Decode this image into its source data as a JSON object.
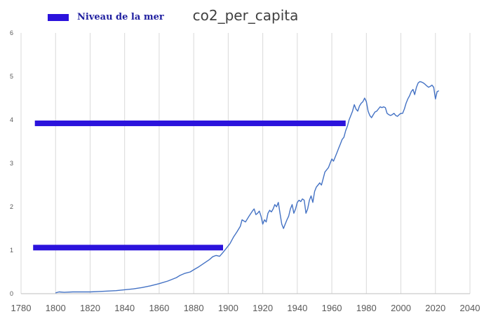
{
  "chart_data": {
    "type": "line",
    "title": "co2_per_capita",
    "xlabel": "",
    "ylabel": "",
    "xlim": [
      1780,
      2040
    ],
    "ylim": [
      0,
      6
    ],
    "xticks": [
      1780,
      1800,
      1820,
      1840,
      1860,
      1880,
      1900,
      1920,
      1940,
      1960,
      1980,
      2000,
      2020,
      2040
    ],
    "yticks": [
      0,
      1,
      2,
      3,
      4,
      5,
      6
    ],
    "grid": "vertical",
    "legend": {
      "position": "top-left",
      "entries": [
        "Niveau de la mer"
      ]
    },
    "colors": {
      "line": "#4472c4",
      "bars": "#2b13dc",
      "grid": "#d9d9d9",
      "axis_text": "#595959"
    },
    "series": [
      {
        "x": [
          1800,
          1802,
          1805,
          1810,
          1815,
          1820,
          1825,
          1830,
          1835,
          1840,
          1845,
          1850,
          1855,
          1860,
          1865,
          1870,
          1872,
          1875,
          1878,
          1880,
          1883,
          1886,
          1889,
          1891,
          1893,
          1895,
          1897,
          1899,
          1901,
          1903,
          1905,
          1907,
          1908,
          1910,
          1912,
          1914,
          1915,
          1916,
          1917,
          1918,
          1919,
          1920,
          1921,
          1922,
          1923,
          1924,
          1925,
          1926,
          1927,
          1928,
          1929,
          1930,
          1931,
          1932,
          1933,
          1934,
          1935,
          1936,
          1937,
          1938,
          1939,
          1940,
          1941,
          1942,
          1943,
          1944,
          1945,
          1946,
          1947,
          1948,
          1949,
          1950,
          1951,
          1952,
          1953,
          1954,
          1955,
          1956,
          1957,
          1958,
          1959,
          1960,
          1961,
          1962,
          1963,
          1964,
          1965,
          1966,
          1967,
          1968,
          1969,
          1970,
          1971,
          1972,
          1973,
          1974,
          1975,
          1976,
          1977,
          1978,
          1979,
          1980,
          1981,
          1982,
          1983,
          1984,
          1985,
          1986,
          1987,
          1988,
          1989,
          1990,
          1991,
          1992,
          1993,
          1994,
          1995,
          1996,
          1997,
          1998,
          1999,
          2000,
          2001,
          2002,
          2003,
          2004,
          2005,
          2006,
          2007,
          2008,
          2009,
          2010,
          2011,
          2012,
          2013,
          2014,
          2015,
          2016,
          2017,
          2018,
          2019,
          2020,
          2021,
          2022
        ],
        "values": [
          0.02,
          0.04,
          0.03,
          0.04,
          0.04,
          0.04,
          0.05,
          0.06,
          0.07,
          0.09,
          0.11,
          0.14,
          0.18,
          0.23,
          0.29,
          0.37,
          0.42,
          0.47,
          0.5,
          0.55,
          0.62,
          0.7,
          0.78,
          0.85,
          0.88,
          0.86,
          0.95,
          1.05,
          1.15,
          1.3,
          1.42,
          1.55,
          1.7,
          1.65,
          1.78,
          1.9,
          1.95,
          1.82,
          1.85,
          1.9,
          1.78,
          1.6,
          1.7,
          1.65,
          1.85,
          1.92,
          1.88,
          1.95,
          2.05,
          2.0,
          2.1,
          1.85,
          1.6,
          1.5,
          1.6,
          1.7,
          1.78,
          1.95,
          2.05,
          1.85,
          1.95,
          2.1,
          2.15,
          2.12,
          2.18,
          2.15,
          1.85,
          1.95,
          2.15,
          2.25,
          2.1,
          2.35,
          2.45,
          2.5,
          2.55,
          2.5,
          2.65,
          2.8,
          2.85,
          2.9,
          3.0,
          3.1,
          3.05,
          3.15,
          3.25,
          3.35,
          3.45,
          3.55,
          3.6,
          3.75,
          3.85,
          4.0,
          4.1,
          4.2,
          4.35,
          4.25,
          4.2,
          4.32,
          4.38,
          4.42,
          4.5,
          4.42,
          4.2,
          4.1,
          4.05,
          4.12,
          4.18,
          4.2,
          4.25,
          4.3,
          4.28,
          4.3,
          4.28,
          4.15,
          4.12,
          4.1,
          4.12,
          4.15,
          4.1,
          4.08,
          4.12,
          4.15,
          4.15,
          4.25,
          4.38,
          4.48,
          4.55,
          4.65,
          4.7,
          4.58,
          4.75,
          4.85,
          4.88,
          4.87,
          4.85,
          4.82,
          4.78,
          4.75,
          4.77,
          4.8,
          4.75,
          4.48,
          4.65,
          4.67
        ]
      }
    ],
    "bars": [
      {
        "x_start": 1788,
        "x_end": 1968,
        "y": 3.92
      },
      {
        "x_start": 1787,
        "x_end": 1897,
        "y": 1.06
      }
    ]
  }
}
